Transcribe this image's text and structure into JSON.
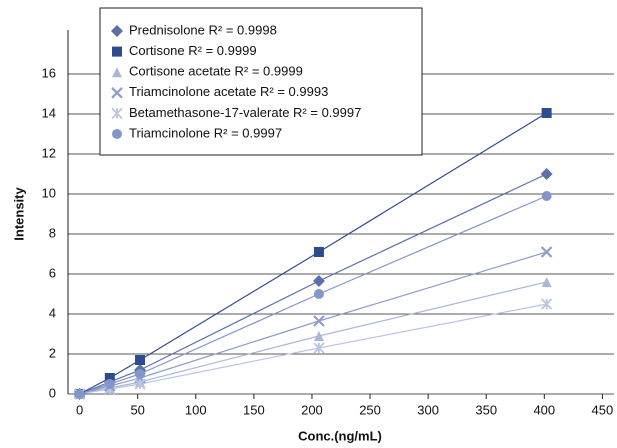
{
  "chart_data": {
    "type": "scatter-line",
    "xlabel": "Conc.(ng/mL)",
    "ylabel": "Intensity",
    "x": [
      0,
      26,
      52,
      206,
      402
    ],
    "xlim": [
      -10,
      460
    ],
    "xticks": [
      0,
      50,
      100,
      150,
      200,
      250,
      300,
      350,
      400,
      450
    ],
    "ylim": [
      0,
      18
    ],
    "yticks": [
      0,
      2,
      4,
      6,
      8,
      10,
      12,
      14,
      16
    ],
    "grid": true,
    "legend": "top-left",
    "series": [
      {
        "name": "Prednisolone R² = 0.9998",
        "color": "#5b70aa",
        "marker": "diamond",
        "values": [
          0,
          0.6,
          1.2,
          5.65,
          11.0
        ]
      },
      {
        "name": "Cortisone R² = 0.9999",
        "color": "#2f4b8f",
        "marker": "square",
        "values": [
          0,
          0.8,
          1.7,
          7.1,
          14.05
        ]
      },
      {
        "name": "Cortisone acetate R² = 0.9999",
        "color": "#aab7d8",
        "marker": "triangle",
        "values": [
          0,
          0.3,
          0.6,
          2.9,
          5.6
        ]
      },
      {
        "name": "Triamcinolone acetate R² = 0.9993",
        "color": "#8f9dc8",
        "marker": "x",
        "values": [
          0,
          0.4,
          0.8,
          3.65,
          7.1
        ]
      },
      {
        "name": "Betamethasone-17-valerate R² = 0.9997",
        "color": "#bcc5e0",
        "marker": "asterisk",
        "values": [
          0,
          0.25,
          0.5,
          2.3,
          4.5
        ]
      },
      {
        "name": "Triamcinolone R² = 0.9997",
        "color": "#8396c8",
        "marker": "circle",
        "values": [
          0,
          0.5,
          1.0,
          5.0,
          9.9
        ]
      }
    ]
  }
}
